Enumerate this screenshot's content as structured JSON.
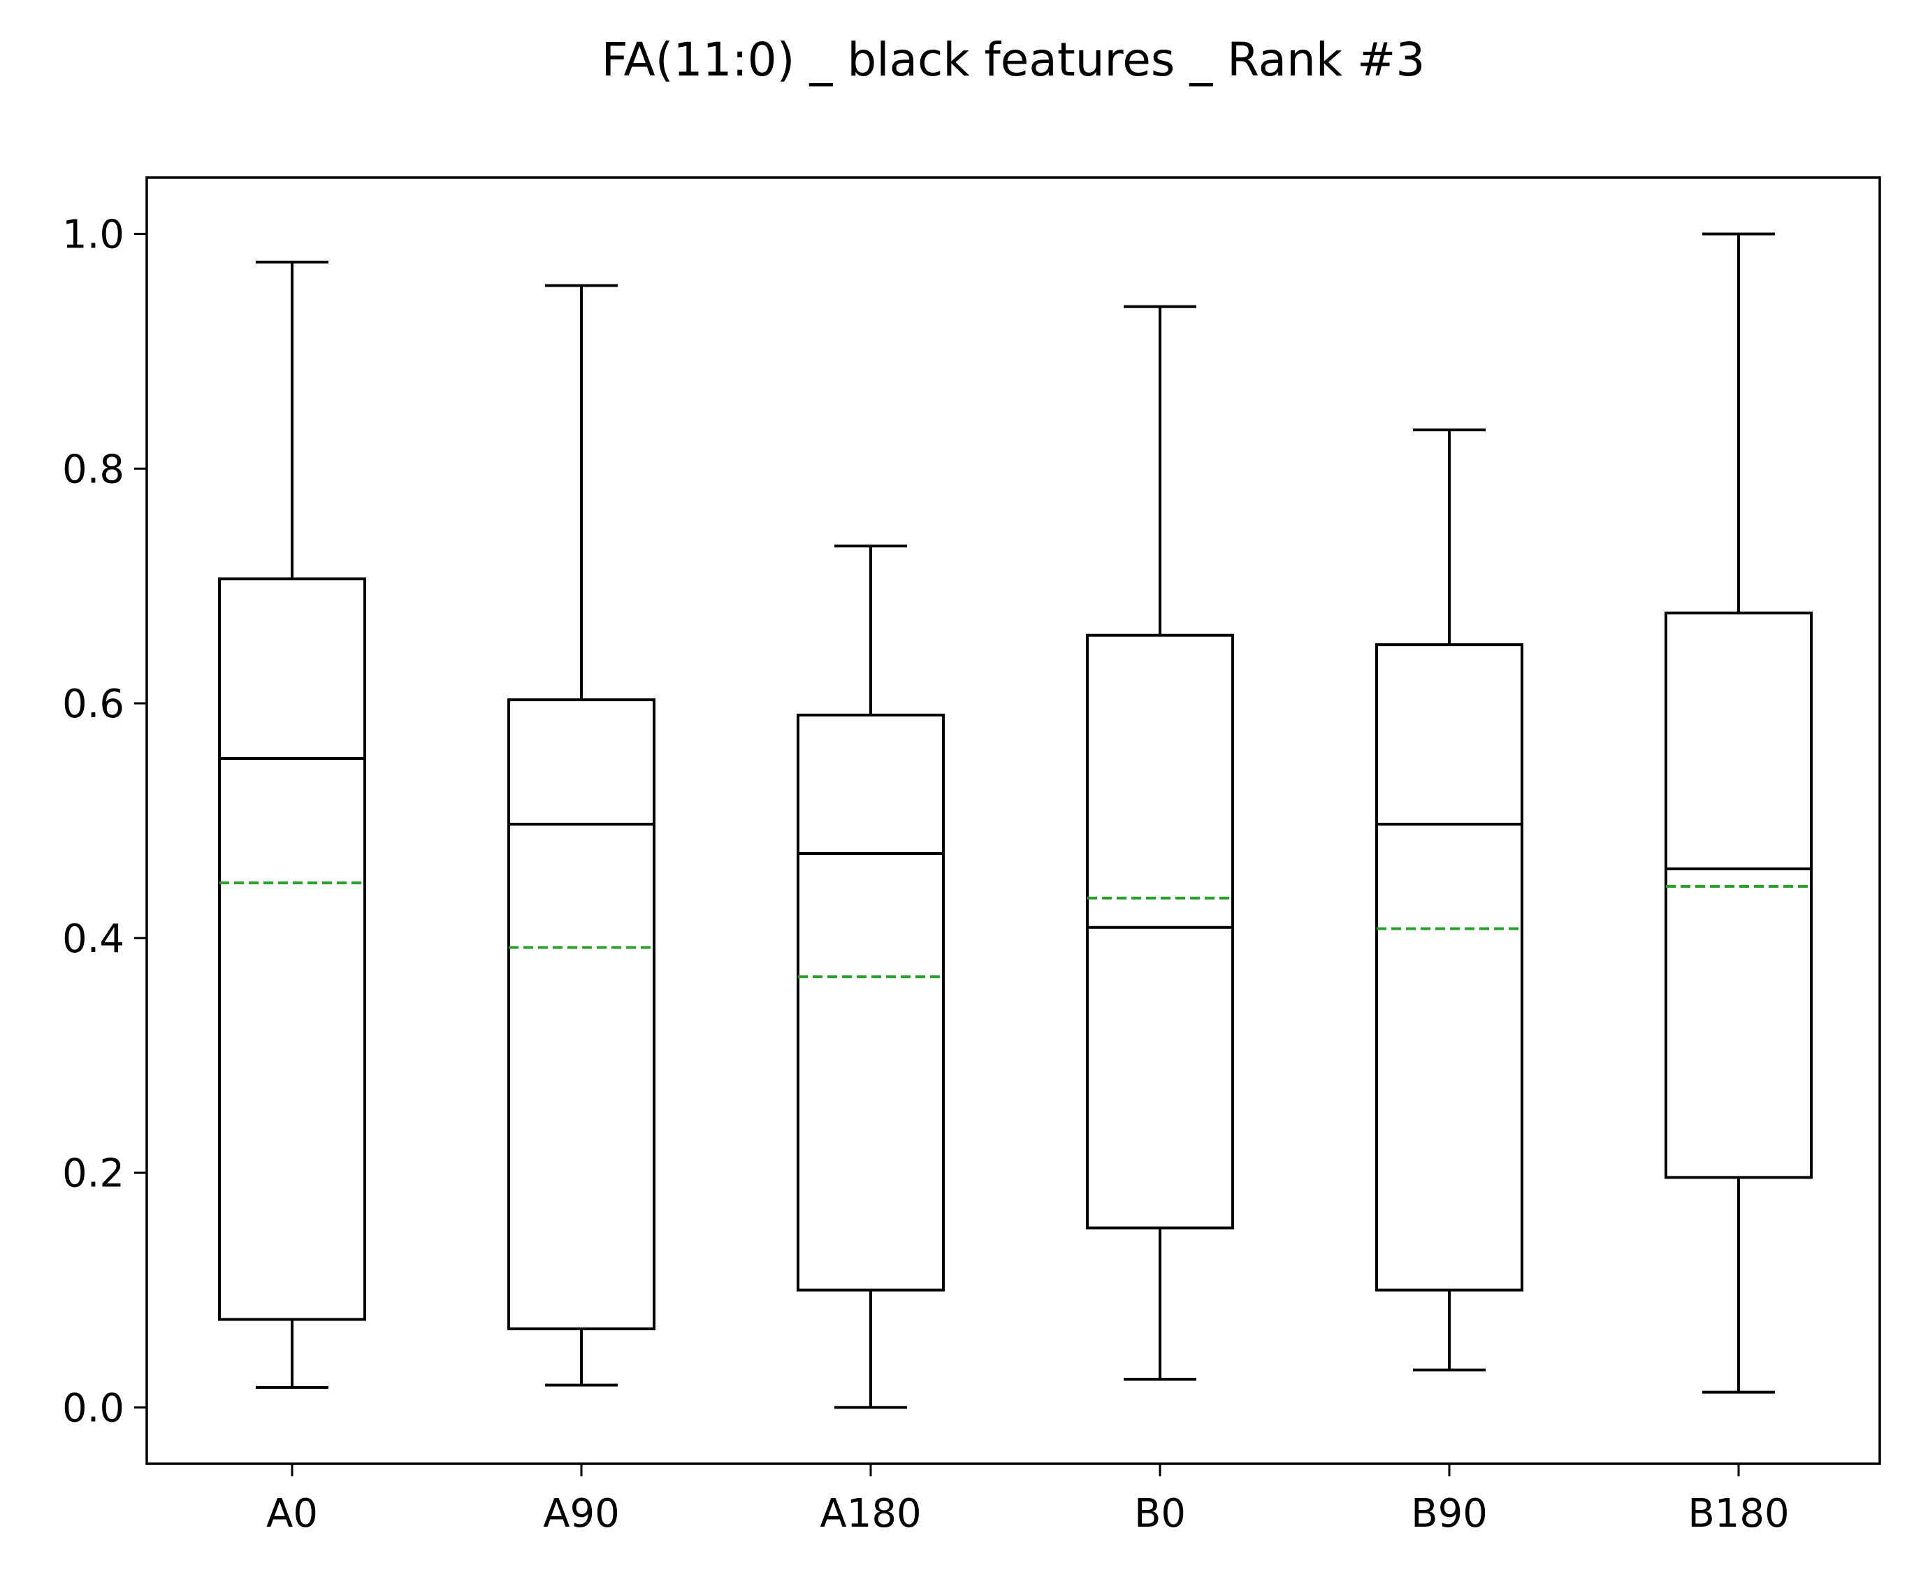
{
  "chart_data": {
    "type": "box",
    "title": "FA(11:0) _ black features _ Rank #3",
    "xlabel": "",
    "ylabel": "",
    "ylim": [
      -0.048,
      1.048
    ],
    "yticks": [
      "0.0",
      "0.2",
      "0.4",
      "0.6",
      "0.8",
      "1.0"
    ],
    "grid": false,
    "categories": [
      "A0",
      "A90",
      "A180",
      "B0",
      "B90",
      "B180"
    ],
    "boxes": [
      {
        "label": "A0",
        "whisker_low": 0.017,
        "q1": 0.075,
        "median": 0.553,
        "q3": 0.706,
        "whisker_high": 0.976,
        "mean": 0.447
      },
      {
        "label": "A90",
        "whisker_low": 0.019,
        "q1": 0.067,
        "median": 0.497,
        "q3": 0.603,
        "whisker_high": 0.956,
        "mean": 0.392
      },
      {
        "label": "A180",
        "whisker_low": 0.0,
        "q1": 0.1,
        "median": 0.472,
        "q3": 0.59,
        "whisker_high": 0.734,
        "mean": 0.367
      },
      {
        "label": "B0",
        "whisker_low": 0.024,
        "q1": 0.153,
        "median": 0.409,
        "q3": 0.658,
        "whisker_high": 0.938,
        "mean": 0.434
      },
      {
        "label": "B90",
        "whisker_low": 0.032,
        "q1": 0.1,
        "median": 0.497,
        "q3": 0.65,
        "whisker_high": 0.833,
        "mean": 0.408
      },
      {
        "label": "B180",
        "whisker_low": 0.013,
        "q1": 0.196,
        "median": 0.459,
        "q3": 0.677,
        "whisker_high": 1.0,
        "mean": 0.444
      }
    ],
    "colors": {
      "box": "#000000",
      "median": "#000000",
      "mean": "#2ca02c"
    }
  }
}
